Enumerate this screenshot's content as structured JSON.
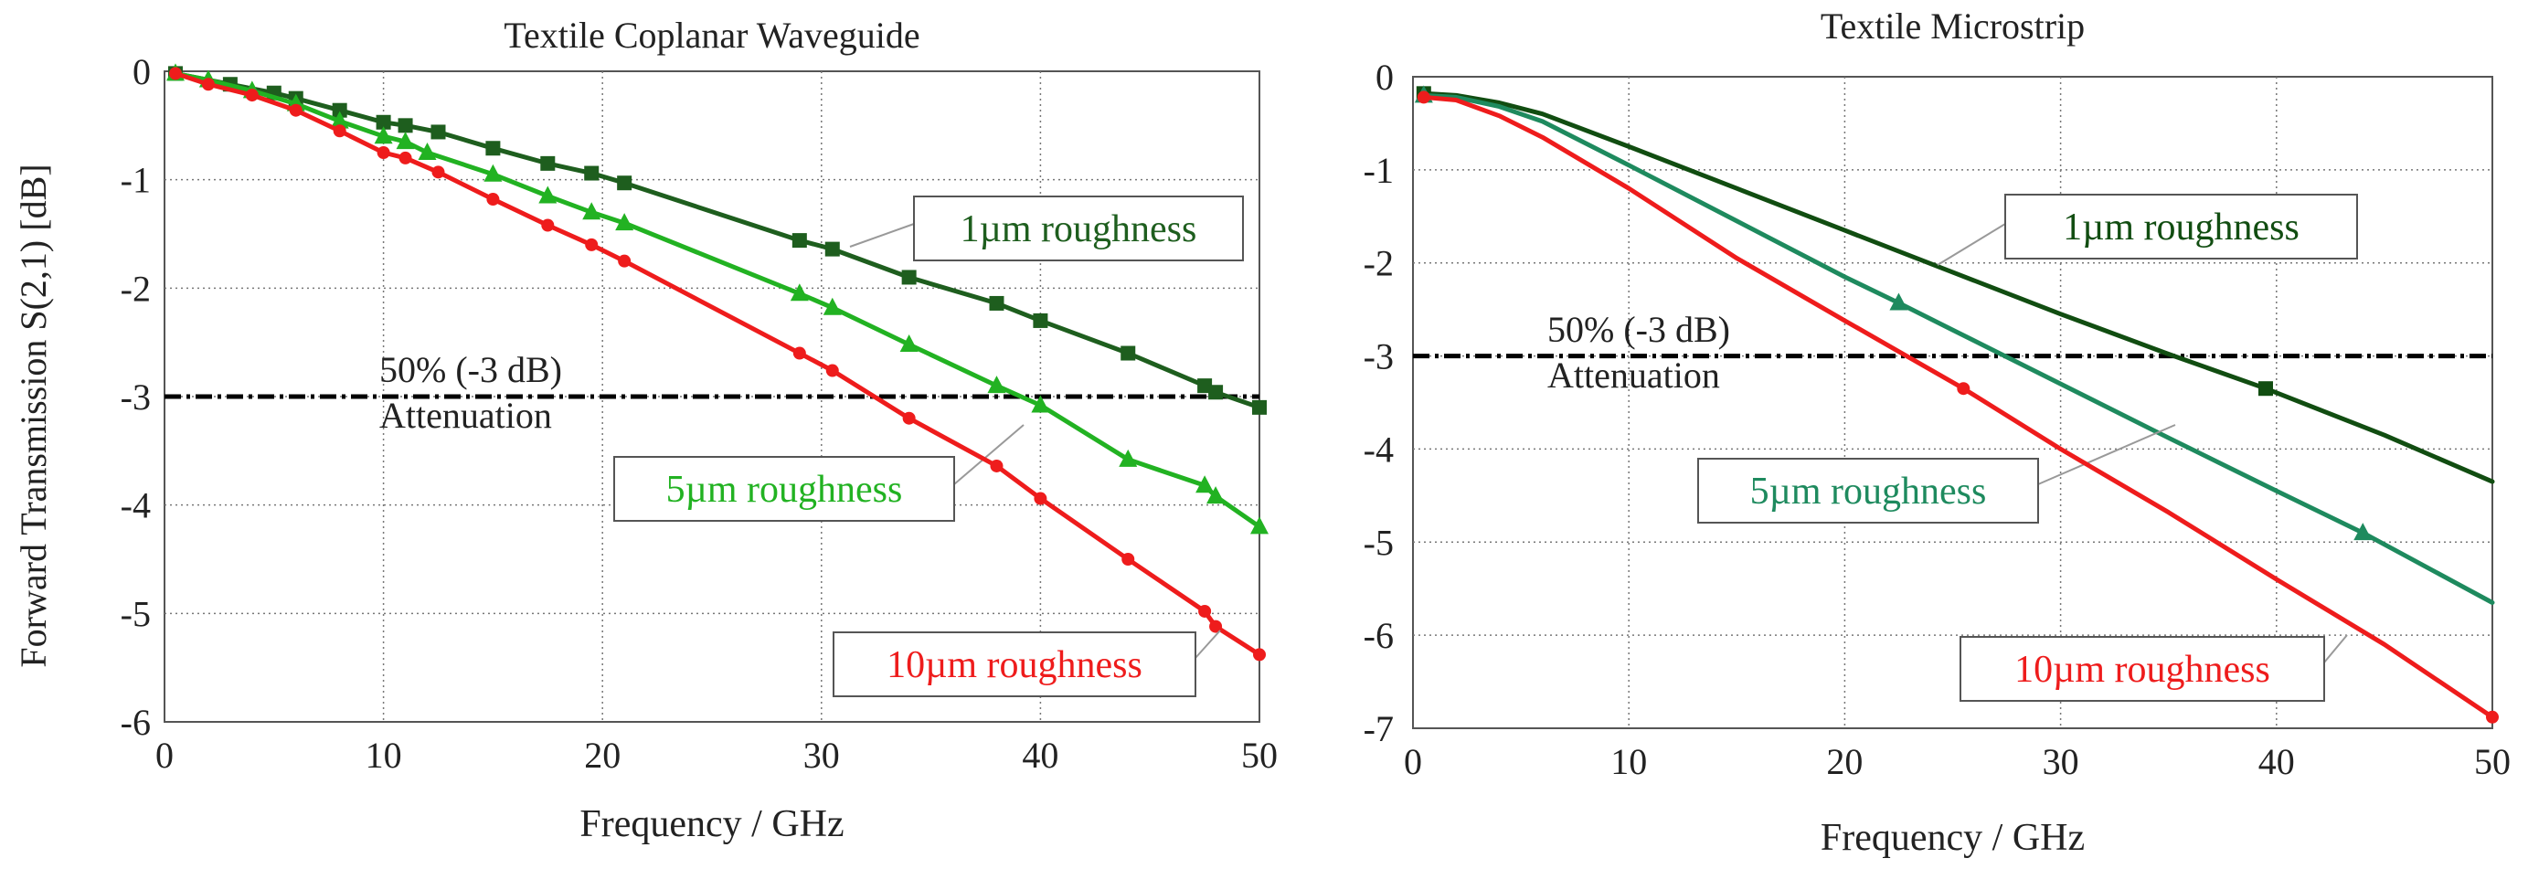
{
  "ylabel": "Forward Transmission S(2,1) [dB]",
  "chart_data": [
    {
      "type": "line",
      "title": "Textile Coplanar Waveguide",
      "xlabel": "Frequency / GHz",
      "ylabel": "Forward Transmission S(2,1) [dB]",
      "xlim": [
        0,
        50
      ],
      "ylim": [
        -6,
        0
      ],
      "xticks": [
        0,
        10,
        20,
        30,
        40,
        50
      ],
      "yticks": [
        0,
        -1,
        -2,
        -3,
        -4,
        -5,
        -6
      ],
      "grid": true,
      "threshold": {
        "y": -3,
        "label_line1": "50% (-3 dB)",
        "label_line2": "Attenuation"
      },
      "series": [
        {
          "name": "1µm roughness",
          "color": "#1e5e1e",
          "marker": "square",
          "points": [
            [
              0.5,
              -0.02
            ],
            [
              3,
              -0.12
            ],
            [
              5,
              -0.2
            ],
            [
              6,
              -0.25
            ],
            [
              8,
              -0.36
            ],
            [
              10,
              -0.47
            ],
            [
              11,
              -0.5
            ],
            [
              12.5,
              -0.56
            ],
            [
              15,
              -0.71
            ],
            [
              17.5,
              -0.85
            ],
            [
              19.5,
              -0.94
            ],
            [
              21,
              -1.03
            ],
            [
              29,
              -1.56
            ],
            [
              30.5,
              -1.64
            ],
            [
              34,
              -1.9
            ],
            [
              38,
              -2.14
            ],
            [
              40,
              -2.3
            ],
            [
              44,
              -2.6
            ],
            [
              47.5,
              -2.9
            ],
            [
              48,
              -2.96
            ],
            [
              50,
              -3.1
            ]
          ],
          "marker_points": [
            [
              0.5,
              -0.02
            ],
            [
              3,
              -0.12
            ],
            [
              5,
              -0.2
            ],
            [
              6,
              -0.25
            ],
            [
              8,
              -0.36
            ],
            [
              10,
              -0.47
            ],
            [
              11,
              -0.5
            ],
            [
              12.5,
              -0.56
            ],
            [
              15,
              -0.71
            ],
            [
              17.5,
              -0.85
            ],
            [
              19.5,
              -0.94
            ],
            [
              21,
              -1.03
            ],
            [
              29,
              -1.56
            ],
            [
              30.5,
              -1.64
            ],
            [
              34,
              -1.9
            ],
            [
              38,
              -2.14
            ],
            [
              40,
              -2.3
            ],
            [
              44,
              -2.6
            ],
            [
              47.5,
              -2.9
            ],
            [
              48,
              -2.96
            ],
            [
              50,
              -3.1
            ]
          ]
        },
        {
          "name": "5µm roughness",
          "color": "#22b222",
          "marker": "triangle",
          "points": [
            [
              0.5,
              -0.02
            ],
            [
              2,
              -0.08
            ],
            [
              4,
              -0.18
            ],
            [
              6,
              -0.3
            ],
            [
              8,
              -0.46
            ],
            [
              10,
              -0.6
            ],
            [
              11,
              -0.65
            ],
            [
              12,
              -0.75
            ],
            [
              15,
              -0.95
            ],
            [
              17.5,
              -1.15
            ],
            [
              19.5,
              -1.3
            ],
            [
              21,
              -1.4
            ],
            [
              29,
              -2.05
            ],
            [
              30.5,
              -2.18
            ],
            [
              34,
              -2.52
            ],
            [
              38,
              -2.9
            ],
            [
              40,
              -3.08
            ],
            [
              44,
              -3.58
            ],
            [
              47.5,
              -3.82
            ],
            [
              48,
              -3.92
            ],
            [
              50,
              -4.2
            ]
          ],
          "marker_points": [
            [
              0.5,
              -0.02
            ],
            [
              2,
              -0.08
            ],
            [
              4,
              -0.18
            ],
            [
              6,
              -0.3
            ],
            [
              8,
              -0.46
            ],
            [
              10,
              -0.6
            ],
            [
              11,
              -0.65
            ],
            [
              12,
              -0.75
            ],
            [
              15,
              -0.95
            ],
            [
              17.5,
              -1.15
            ],
            [
              19.5,
              -1.3
            ],
            [
              21,
              -1.4
            ],
            [
              29,
              -2.05
            ],
            [
              30.5,
              -2.18
            ],
            [
              34,
              -2.52
            ],
            [
              38,
              -2.9
            ],
            [
              40,
              -3.08
            ],
            [
              44,
              -3.58
            ],
            [
              47.5,
              -3.82
            ],
            [
              48,
              -3.92
            ],
            [
              50,
              -4.2
            ]
          ]
        },
        {
          "name": "10µm roughness",
          "color": "#ee1c1c",
          "marker": "circle",
          "points": [
            [
              0.5,
              -0.02
            ],
            [
              2,
              -0.12
            ],
            [
              4,
              -0.22
            ],
            [
              6,
              -0.36
            ],
            [
              8,
              -0.55
            ],
            [
              10,
              -0.75
            ],
            [
              11,
              -0.8
            ],
            [
              12.5,
              -0.93
            ],
            [
              15,
              -1.18
            ],
            [
              17.5,
              -1.42
            ],
            [
              19.5,
              -1.6
            ],
            [
              21,
              -1.75
            ],
            [
              29,
              -2.6
            ],
            [
              30.5,
              -2.76
            ],
            [
              34,
              -3.2
            ],
            [
              38,
              -3.64
            ],
            [
              40,
              -3.94
            ],
            [
              44,
              -4.5
            ],
            [
              47.5,
              -4.98
            ],
            [
              48,
              -5.12
            ],
            [
              50,
              -5.38
            ]
          ],
          "marker_points": [
            [
              0.5,
              -0.02
            ],
            [
              2,
              -0.12
            ],
            [
              4,
              -0.22
            ],
            [
              6,
              -0.36
            ],
            [
              8,
              -0.55
            ],
            [
              10,
              -0.75
            ],
            [
              11,
              -0.8
            ],
            [
              12.5,
              -0.93
            ],
            [
              15,
              -1.18
            ],
            [
              17.5,
              -1.42
            ],
            [
              19.5,
              -1.6
            ],
            [
              21,
              -1.75
            ],
            [
              29,
              -2.6
            ],
            [
              30.5,
              -2.76
            ],
            [
              34,
              -3.2
            ],
            [
              38,
              -3.64
            ],
            [
              40,
              -3.94
            ],
            [
              44,
              -4.5
            ],
            [
              47.5,
              -4.98
            ],
            [
              48,
              -5.12
            ],
            [
              50,
              -5.38
            ]
          ]
        }
      ]
    },
    {
      "type": "line",
      "title": "Textile Microstrip",
      "xlabel": "Frequency / GHz",
      "ylabel": "",
      "xlim": [
        0,
        50
      ],
      "ylim": [
        -7,
        0
      ],
      "xticks": [
        0,
        10,
        20,
        30,
        40,
        50
      ],
      "yticks": [
        0,
        -1,
        -2,
        -3,
        -4,
        -5,
        -6,
        -7
      ],
      "grid": true,
      "threshold": {
        "y": -3,
        "label_line1": "50% (-3 dB)",
        "label_line2": "Attenuation"
      },
      "series": [
        {
          "name": "1µm roughness",
          "color": "#114d11",
          "marker": "square",
          "points": [
            [
              0.5,
              -0.18
            ],
            [
              2,
              -0.2
            ],
            [
              4,
              -0.28
            ],
            [
              6,
              -0.4
            ],
            [
              10,
              -0.75
            ],
            [
              15,
              -1.2
            ],
            [
              20,
              -1.65
            ],
            [
              25,
              -2.1
            ],
            [
              30,
              -2.55
            ],
            [
              35,
              -2.98
            ],
            [
              39.5,
              -3.35
            ],
            [
              45,
              -3.85
            ],
            [
              50,
              -4.35
            ]
          ],
          "marker_points": [
            [
              0.5,
              -0.18
            ],
            [
              39.5,
              -3.35
            ]
          ]
        },
        {
          "name": "5µm roughness",
          "color": "#1e8a5e",
          "marker": "triangle",
          "points": [
            [
              0.5,
              -0.2
            ],
            [
              2,
              -0.22
            ],
            [
              4,
              -0.32
            ],
            [
              6,
              -0.48
            ],
            [
              10,
              -0.95
            ],
            [
              15,
              -1.55
            ],
            [
              20,
              -2.15
            ],
            [
              22.5,
              -2.43
            ],
            [
              25,
              -2.72
            ],
            [
              30,
              -3.3
            ],
            [
              35,
              -3.88
            ],
            [
              40,
              -4.45
            ],
            [
              44,
              -4.9
            ],
            [
              50,
              -5.65
            ]
          ],
          "marker_points": [
            [
              0.5,
              -0.2
            ],
            [
              22.5,
              -2.43
            ],
            [
              44,
              -4.9
            ]
          ]
        },
        {
          "name": "10µm roughness",
          "color": "#ee1c1c",
          "marker": "circle",
          "points": [
            [
              0.5,
              -0.22
            ],
            [
              2,
              -0.25
            ],
            [
              4,
              -0.42
            ],
            [
              6,
              -0.65
            ],
            [
              10,
              -1.2
            ],
            [
              15,
              -1.95
            ],
            [
              20,
              -2.62
            ],
            [
              25.5,
              -3.35
            ],
            [
              30,
              -4.0
            ],
            [
              35,
              -4.68
            ],
            [
              40,
              -5.4
            ],
            [
              45,
              -6.1
            ],
            [
              50,
              -6.88
            ]
          ],
          "marker_points": [
            [
              0.5,
              -0.22
            ],
            [
              25.5,
              -3.35
            ],
            [
              50,
              -6.88
            ]
          ]
        }
      ]
    }
  ]
}
